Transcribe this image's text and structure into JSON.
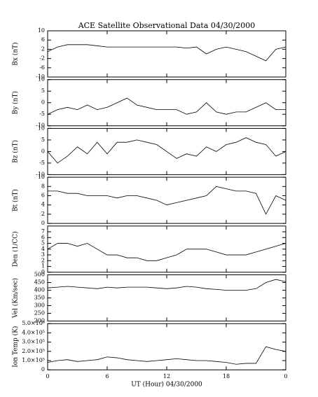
{
  "chart_data": [
    {
      "type": "line",
      "title": "ACE Satellite Observational Data  04/30/2000",
      "ylabel": "Bx (nT)",
      "color": "#000000",
      "x": [
        0,
        1,
        2,
        3,
        4,
        5,
        6,
        7,
        8,
        9,
        10,
        11,
        12,
        13,
        14,
        15,
        16,
        17,
        18,
        19,
        20,
        21,
        22,
        23,
        24
      ],
      "values": [
        1,
        3,
        4,
        4,
        4,
        3.5,
        3,
        3,
        3,
        3,
        3,
        3,
        3,
        3,
        2.5,
        3,
        0,
        2,
        3,
        2,
        1,
        -1,
        -3,
        2,
        3
      ],
      "xlim": [
        0,
        24
      ],
      "ylim": [
        -10,
        10
      ],
      "yticks": [
        -10,
        -6,
        -2,
        2,
        6,
        10
      ]
    },
    {
      "type": "line",
      "ylabel": "By (nT)",
      "color": "#000000",
      "x": [
        0,
        1,
        2,
        3,
        4,
        5,
        6,
        7,
        8,
        9,
        10,
        11,
        12,
        13,
        14,
        15,
        16,
        17,
        18,
        19,
        20,
        21,
        22,
        23,
        24
      ],
      "values": [
        -5,
        -3,
        -2,
        -3,
        -1,
        -3,
        -2,
        0,
        2,
        -1,
        -2,
        -3,
        -3,
        -3,
        -5,
        -4,
        0,
        -4,
        -5,
        -4,
        -4,
        -2,
        0,
        -3,
        -3
      ],
      "xlim": [
        0,
        24
      ],
      "ylim": [
        -10,
        10
      ],
      "yticks": [
        -10,
        -5,
        0,
        5,
        10
      ]
    },
    {
      "type": "line",
      "ylabel": "Bz (nT)",
      "color": "#000000",
      "x": [
        0,
        1,
        2,
        3,
        4,
        5,
        6,
        7,
        8,
        9,
        10,
        11,
        12,
        13,
        14,
        15,
        16,
        17,
        18,
        19,
        20,
        21,
        22,
        23,
        24
      ],
      "values": [
        0,
        -5,
        -2,
        2,
        -1,
        4,
        -1,
        4,
        4,
        5,
        4,
        3,
        0,
        -3,
        -1,
        -2,
        2,
        0,
        3,
        4,
        6,
        4,
        3,
        -2,
        0
      ],
      "xlim": [
        0,
        24
      ],
      "ylim": [
        -10,
        10
      ],
      "yticks": [
        -10,
        -5,
        0,
        5,
        10
      ]
    },
    {
      "type": "line",
      "ylabel": "Bt (nT)",
      "color": "#000000",
      "x": [
        0,
        1,
        2,
        3,
        4,
        5,
        6,
        7,
        8,
        9,
        10,
        11,
        12,
        13,
        14,
        15,
        16,
        17,
        18,
        19,
        20,
        21,
        22,
        23,
        24
      ],
      "values": [
        7,
        7,
        6.5,
        6.5,
        6,
        6,
        6,
        5.5,
        6,
        6,
        5.5,
        5,
        4,
        4.5,
        5,
        5.5,
        6,
        8,
        7.5,
        7,
        7,
        6.5,
        2,
        6,
        5
      ],
      "xlim": [
        0,
        24
      ],
      "ylim": [
        0,
        10
      ],
      "yticks": [
        0,
        2,
        4,
        6,
        8,
        10
      ]
    },
    {
      "type": "line",
      "ylabel": "Den (1/CC)",
      "color": "#000000",
      "x": [
        0,
        1,
        2,
        3,
        4,
        5,
        6,
        7,
        8,
        9,
        10,
        11,
        12,
        13,
        14,
        15,
        16,
        17,
        18,
        19,
        20,
        21,
        22,
        23,
        24
      ],
      "values": [
        4,
        5,
        5,
        4.5,
        5,
        4,
        3,
        3,
        2.5,
        2.5,
        2,
        2,
        2.5,
        3,
        4,
        4,
        4,
        3.5,
        3,
        3,
        3,
        3.5,
        4,
        4.5,
        5
      ],
      "xlim": [
        0,
        24
      ],
      "ylim": [
        0,
        8
      ],
      "yticks": [
        0,
        1,
        2,
        3,
        4,
        5,
        6,
        7
      ]
    },
    {
      "type": "line",
      "ylabel": "Vel (Km/sec)",
      "color": "#000000",
      "x": [
        0,
        1,
        2,
        3,
        4,
        5,
        6,
        7,
        8,
        9,
        10,
        11,
        12,
        13,
        14,
        15,
        16,
        17,
        18,
        19,
        20,
        21,
        22,
        23,
        24
      ],
      "values": [
        415,
        420,
        425,
        420,
        415,
        410,
        420,
        415,
        420,
        420,
        420,
        415,
        410,
        415,
        425,
        420,
        410,
        405,
        400,
        400,
        400,
        410,
        450,
        470,
        455
      ],
      "xlim": [
        0,
        24
      ],
      "ylim": [
        200,
        500
      ],
      "yticks": [
        200,
        250,
        300,
        350,
        400,
        450,
        500
      ]
    },
    {
      "type": "line",
      "ylabel": "Ion Temp (K)",
      "xlabel": "UT (Hour)  04/30/2000",
      "color": "#000000",
      "x": [
        0,
        1,
        2,
        3,
        4,
        5,
        6,
        7,
        8,
        9,
        10,
        11,
        12,
        13,
        14,
        15,
        16,
        17,
        18,
        19,
        20,
        21,
        22,
        23,
        24
      ],
      "values": [
        80000,
        100000,
        110000,
        90000,
        100000,
        110000,
        140000,
        130000,
        110000,
        100000,
        90000,
        100000,
        110000,
        120000,
        110000,
        100000,
        100000,
        90000,
        80000,
        60000,
        70000,
        70000,
        250000,
        220000,
        200000
      ],
      "xlim": [
        0,
        24
      ],
      "ylim": [
        0,
        500000
      ],
      "yticks": [
        0,
        {
          "value": 100000,
          "label": "1.0×10⁵"
        },
        {
          "value": 200000,
          "label": "2.0×10⁵"
        },
        {
          "value": 300000,
          "label": "3.0×10⁵"
        },
        {
          "value": 400000,
          "label": "4.0×10⁵"
        },
        {
          "value": 500000,
          "label": "5.0×10⁵"
        }
      ],
      "xticks": [
        0,
        6,
        12,
        18,
        {
          "value": 24,
          "label": "0"
        }
      ]
    }
  ]
}
